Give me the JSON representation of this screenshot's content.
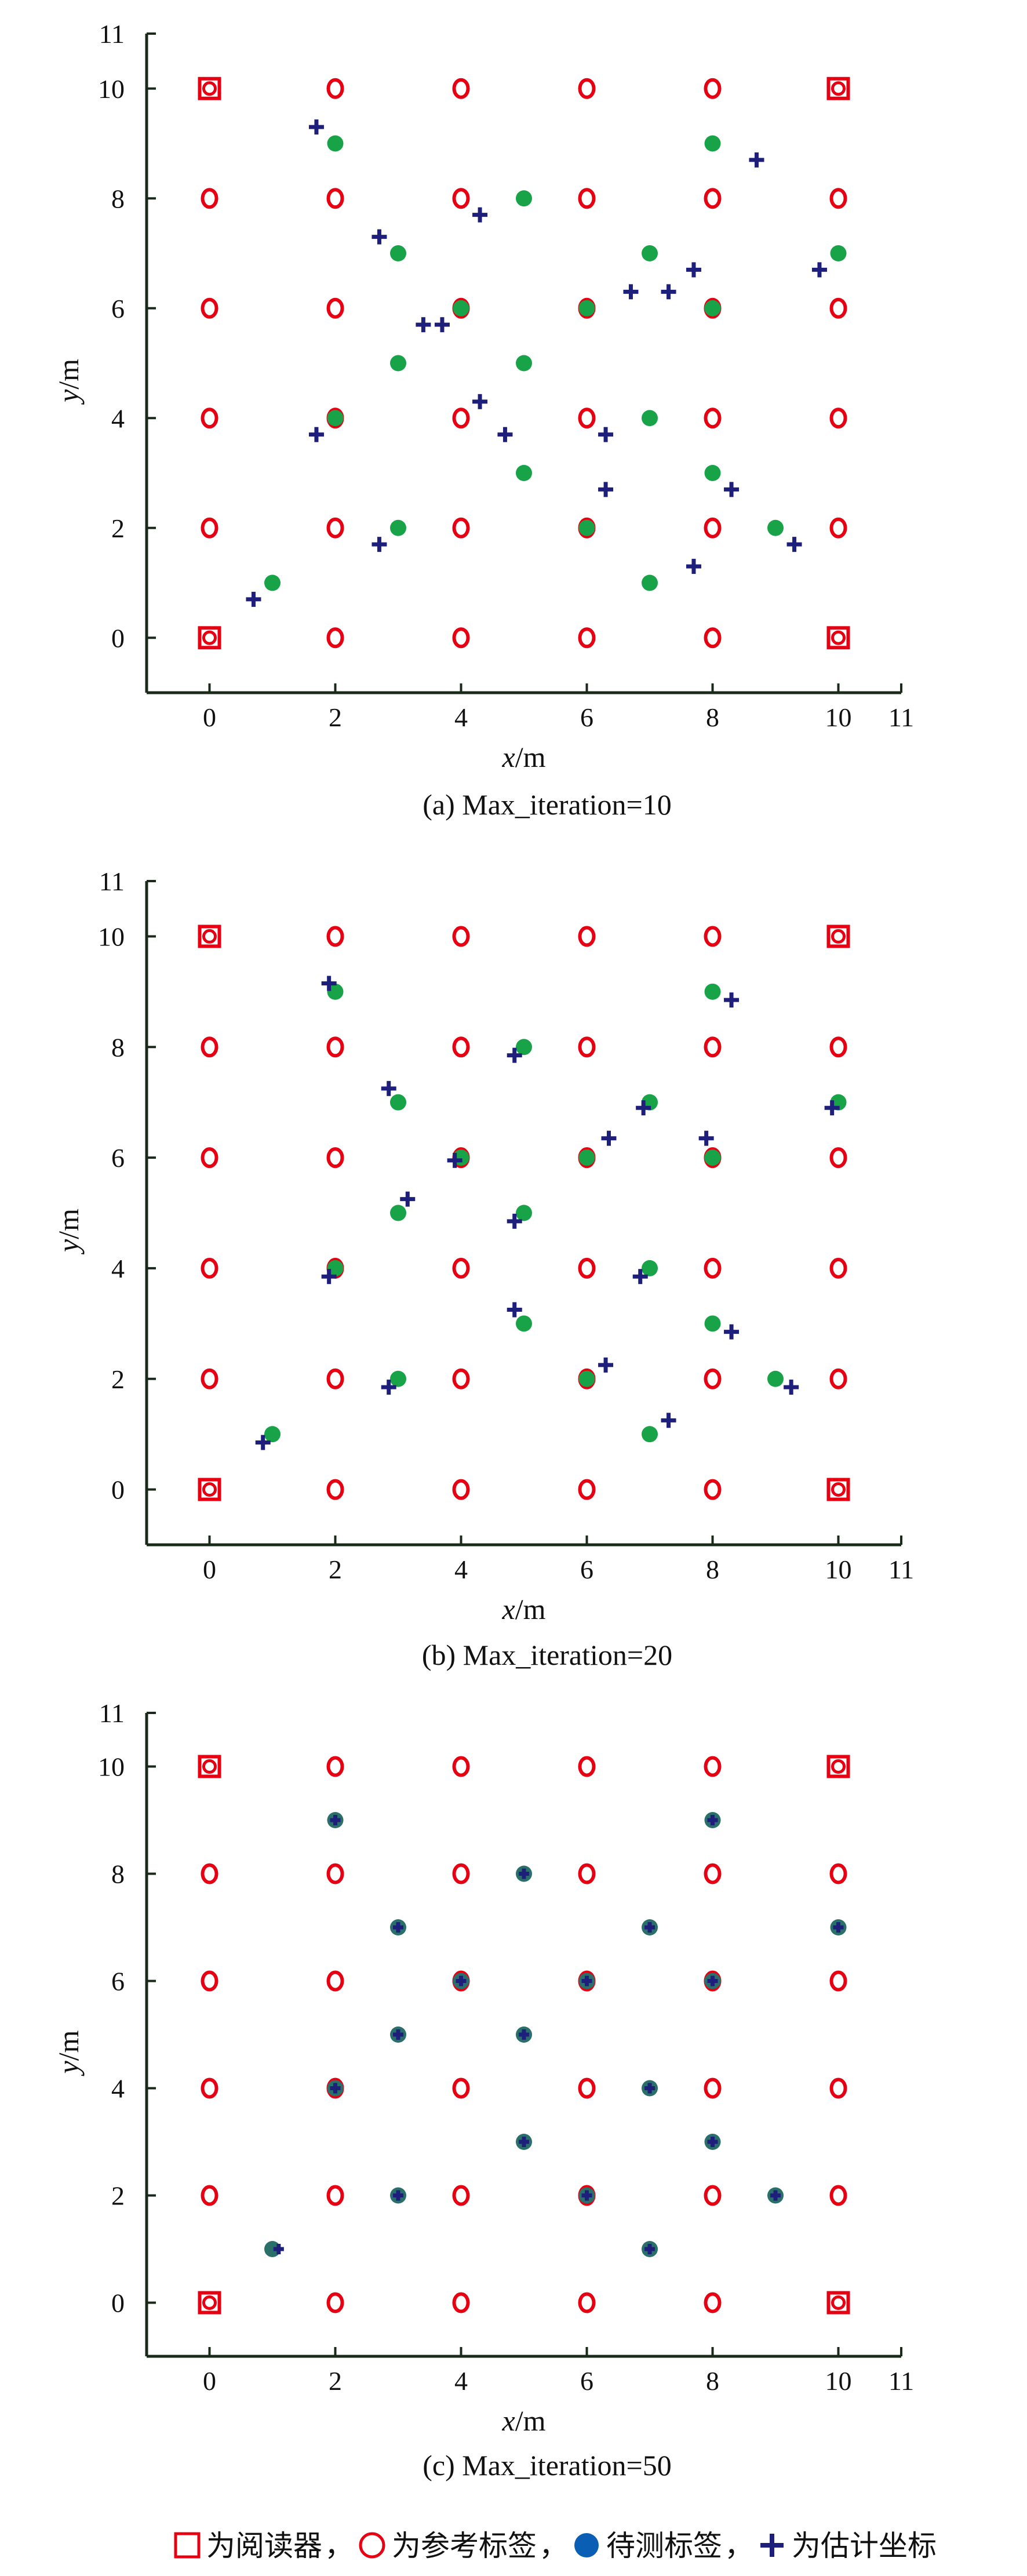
{
  "legend": {
    "reader": "为阅读器",
    "reference": "为参考标签",
    "target": "待测标签",
    "estimate": "为估计坐标",
    "sep1": "，",
    "sep2": "，",
    "sep3": "，"
  },
  "colors": {
    "reader": "#e60012",
    "reference": "#e60012",
    "target": "#19a348",
    "estimate": "#1d1f7a",
    "legend_target": "#0a5fb4",
    "axis": "#1a2a1a"
  },
  "chart_data": [
    {
      "type": "scatter",
      "caption": "(a) Max_iteration=10",
      "xlabel": "x/m",
      "ylabel": "y/m",
      "xlim": [
        -1,
        11
      ],
      "ylim": [
        -1,
        11
      ],
      "xticks": [
        0,
        2,
        4,
        6,
        8,
        10,
        11
      ],
      "yticks": [
        0,
        2,
        4,
        6,
        8,
        10,
        11
      ],
      "grid": false,
      "series": [
        {
          "name": "为阅读器",
          "marker": "square",
          "points": [
            [
              0,
              10
            ],
            [
              10,
              10
            ],
            [
              0,
              0
            ],
            [
              10,
              0
            ]
          ]
        },
        {
          "name": "为参考标签",
          "marker": "circle",
          "points": [
            [
              2,
              10
            ],
            [
              4,
              10
            ],
            [
              6,
              10
            ],
            [
              8,
              10
            ],
            [
              0,
              8
            ],
            [
              2,
              8
            ],
            [
              4,
              8
            ],
            [
              6,
              8
            ],
            [
              8,
              8
            ],
            [
              10,
              8
            ],
            [
              0,
              6
            ],
            [
              2,
              6
            ],
            [
              4,
              6
            ],
            [
              6,
              6
            ],
            [
              8,
              6
            ],
            [
              10,
              6
            ],
            [
              0,
              4
            ],
            [
              2,
              4
            ],
            [
              4,
              4
            ],
            [
              6,
              4
            ],
            [
              8,
              4
            ],
            [
              10,
              4
            ],
            [
              0,
              2
            ],
            [
              2,
              2
            ],
            [
              4,
              2
            ],
            [
              6,
              2
            ],
            [
              8,
              2
            ],
            [
              10,
              2
            ],
            [
              2,
              0
            ],
            [
              4,
              0
            ],
            [
              6,
              0
            ],
            [
              8,
              0
            ]
          ]
        },
        {
          "name": "待测标签",
          "marker": "dot",
          "points": [
            [
              1,
              1
            ],
            [
              2,
              9
            ],
            [
              2,
              4
            ],
            [
              3,
              7
            ],
            [
              3,
              5
            ],
            [
              3,
              2
            ],
            [
              4,
              6
            ],
            [
              5,
              8
            ],
            [
              5,
              5
            ],
            [
              5,
              3
            ],
            [
              6,
              6
            ],
            [
              6,
              2
            ],
            [
              7,
              7
            ],
            [
              7,
              4
            ],
            [
              7,
              1
            ],
            [
              8,
              9
            ],
            [
              8,
              6
            ],
            [
              8,
              3
            ],
            [
              9,
              2
            ],
            [
              10,
              7
            ]
          ]
        },
        {
          "name": "为估计坐标",
          "marker": "plus",
          "points": [
            [
              0.7,
              0.7
            ],
            [
              1.7,
              9.3
            ],
            [
              1.7,
              3.7
            ],
            [
              2.7,
              7.3
            ],
            [
              3.4,
              5.7
            ],
            [
              3.7,
              5.7
            ],
            [
              2.7,
              1.7
            ],
            [
              4.3,
              7.7
            ],
            [
              4.3,
              4.3
            ],
            [
              4.7,
              3.7
            ],
            [
              6.3,
              3.7
            ],
            [
              6.3,
              2.7
            ],
            [
              6.7,
              6.3
            ],
            [
              7.3,
              6.3
            ],
            [
              7.7,
              6.7
            ],
            [
              7.7,
              1.3
            ],
            [
              8.7,
              8.7
            ],
            [
              8.3,
              2.7
            ],
            [
              9.3,
              1.7
            ],
            [
              9.7,
              6.7
            ]
          ]
        }
      ]
    },
    {
      "type": "scatter",
      "caption": "(b) Max_iteration=20",
      "xlabel": "x/m",
      "ylabel": "y/m",
      "xlim": [
        -1,
        11
      ],
      "ylim": [
        -1,
        11
      ],
      "xticks": [
        0,
        2,
        4,
        6,
        8,
        10,
        11
      ],
      "yticks": [
        0,
        2,
        4,
        6,
        8,
        10,
        11
      ],
      "grid": false,
      "series": [
        {
          "name": "为阅读器",
          "marker": "square",
          "points": [
            [
              0,
              10
            ],
            [
              10,
              10
            ],
            [
              0,
              0
            ],
            [
              10,
              0
            ]
          ]
        },
        {
          "name": "为参考标签",
          "marker": "circle",
          "points": [
            [
              2,
              10
            ],
            [
              4,
              10
            ],
            [
              6,
              10
            ],
            [
              8,
              10
            ],
            [
              0,
              8
            ],
            [
              2,
              8
            ],
            [
              4,
              8
            ],
            [
              6,
              8
            ],
            [
              8,
              8
            ],
            [
              10,
              8
            ],
            [
              0,
              6
            ],
            [
              2,
              6
            ],
            [
              4,
              6
            ],
            [
              6,
              6
            ],
            [
              8,
              6
            ],
            [
              10,
              6
            ],
            [
              0,
              4
            ],
            [
              2,
              4
            ],
            [
              4,
              4
            ],
            [
              6,
              4
            ],
            [
              8,
              4
            ],
            [
              10,
              4
            ],
            [
              0,
              2
            ],
            [
              2,
              2
            ],
            [
              4,
              2
            ],
            [
              6,
              2
            ],
            [
              8,
              2
            ],
            [
              10,
              2
            ],
            [
              2,
              0
            ],
            [
              4,
              0
            ],
            [
              6,
              0
            ],
            [
              8,
              0
            ]
          ]
        },
        {
          "name": "待测标签",
          "marker": "dot",
          "points": [
            [
              1,
              1
            ],
            [
              2,
              9
            ],
            [
              2,
              4
            ],
            [
              3,
              7
            ],
            [
              3,
              5
            ],
            [
              3,
              2
            ],
            [
              4,
              6
            ],
            [
              5,
              8
            ],
            [
              5,
              5
            ],
            [
              5,
              3
            ],
            [
              6,
              6
            ],
            [
              6,
              2
            ],
            [
              7,
              7
            ],
            [
              7,
              4
            ],
            [
              7,
              1
            ],
            [
              8,
              9
            ],
            [
              8,
              6
            ],
            [
              8,
              3
            ],
            [
              9,
              2
            ],
            [
              10,
              7
            ]
          ]
        },
        {
          "name": "为估计坐标",
          "marker": "plus",
          "points": [
            [
              0.85,
              0.85
            ],
            [
              1.9,
              9.15
            ],
            [
              1.9,
              3.85
            ],
            [
              2.85,
              7.25
            ],
            [
              3.15,
              5.25
            ],
            [
              2.85,
              1.85
            ],
            [
              3.9,
              5.95
            ],
            [
              4.85,
              7.85
            ],
            [
              4.85,
              4.85
            ],
            [
              4.85,
              3.25
            ],
            [
              6.3,
              2.25
            ],
            [
              6.35,
              6.35
            ],
            [
              6.9,
              6.9
            ],
            [
              6.85,
              3.85
            ],
            [
              7.3,
              1.25
            ],
            [
              7.9,
              6.35
            ],
            [
              8.3,
              8.85
            ],
            [
              8.3,
              2.85
            ],
            [
              9.25,
              1.85
            ],
            [
              9.9,
              6.9
            ]
          ]
        }
      ]
    },
    {
      "type": "scatter",
      "caption": "(c) Max_iteration=50",
      "xlabel": "x/m",
      "ylabel": "y/m",
      "xlim": [
        -1,
        11
      ],
      "ylim": [
        -1,
        11
      ],
      "xticks": [
        0,
        2,
        4,
        6,
        8,
        10,
        11
      ],
      "yticks": [
        0,
        2,
        4,
        6,
        8,
        10,
        11
      ],
      "grid": false,
      "series": [
        {
          "name": "为阅读器",
          "marker": "square",
          "points": [
            [
              0,
              10
            ],
            [
              10,
              10
            ],
            [
              0,
              0
            ],
            [
              10,
              0
            ]
          ]
        },
        {
          "name": "为参考标签",
          "marker": "circle",
          "points": [
            [
              2,
              10
            ],
            [
              4,
              10
            ],
            [
              6,
              10
            ],
            [
              8,
              10
            ],
            [
              0,
              8
            ],
            [
              2,
              8
            ],
            [
              4,
              8
            ],
            [
              6,
              8
            ],
            [
              8,
              8
            ],
            [
              10,
              8
            ],
            [
              0,
              6
            ],
            [
              2,
              6
            ],
            [
              4,
              6
            ],
            [
              6,
              6
            ],
            [
              8,
              6
            ],
            [
              10,
              6
            ],
            [
              0,
              4
            ],
            [
              2,
              4
            ],
            [
              4,
              4
            ],
            [
              6,
              4
            ],
            [
              8,
              4
            ],
            [
              10,
              4
            ],
            [
              0,
              2
            ],
            [
              2,
              2
            ],
            [
              4,
              2
            ],
            [
              6,
              2
            ],
            [
              8,
              2
            ],
            [
              10,
              2
            ],
            [
              2,
              0
            ],
            [
              4,
              0
            ],
            [
              6,
              0
            ],
            [
              8,
              0
            ]
          ]
        },
        {
          "name": "待测标签",
          "marker": "dot",
          "points": [
            [
              1,
              1
            ],
            [
              2,
              9
            ],
            [
              2,
              4
            ],
            [
              3,
              7
            ],
            [
              3,
              5
            ],
            [
              3,
              2
            ],
            [
              4,
              6
            ],
            [
              5,
              8
            ],
            [
              5,
              5
            ],
            [
              5,
              3
            ],
            [
              6,
              6
            ],
            [
              6,
              2
            ],
            [
              7,
              7
            ],
            [
              7,
              4
            ],
            [
              7,
              1
            ],
            [
              8,
              9
            ],
            [
              8,
              6
            ],
            [
              8,
              3
            ],
            [
              9,
              2
            ],
            [
              10,
              7
            ]
          ]
        },
        {
          "name": "为估计坐标",
          "marker": "plus",
          "points": [
            [
              1.1,
              1.0
            ],
            [
              2,
              9
            ],
            [
              2,
              4
            ],
            [
              3,
              7
            ],
            [
              3,
              5
            ],
            [
              3,
              2
            ],
            [
              4,
              6
            ],
            [
              5,
              8
            ],
            [
              5,
              5
            ],
            [
              5,
              3
            ],
            [
              6,
              6
            ],
            [
              6,
              2
            ],
            [
              7,
              7
            ],
            [
              7,
              4
            ],
            [
              7,
              1
            ],
            [
              8,
              9
            ],
            [
              8,
              6
            ],
            [
              8,
              3
            ],
            [
              9,
              2
            ],
            [
              10,
              7
            ]
          ]
        }
      ]
    }
  ]
}
